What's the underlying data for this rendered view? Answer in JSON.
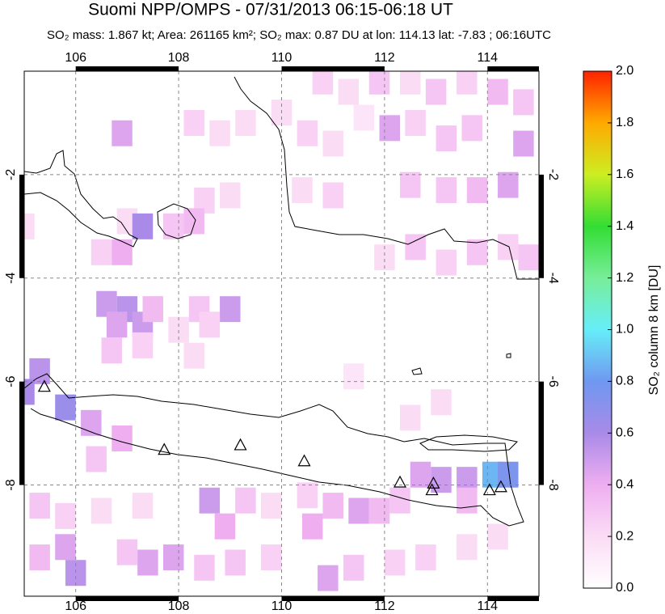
{
  "title": "Suomi NPP/OMPS - 07/31/2013 06:15-06:18 UT",
  "subtitle": "SO₂ mass: 1.867 kt; Area: 261165 km²; SO₂ max: 0.87 DU at lon: 114.13 lat: -7.83 ; 06:16UTC",
  "map": {
    "lonlim": [
      105,
      115
    ],
    "latlim": [
      -10.15,
      0
    ],
    "lonticks": [
      106,
      108,
      110,
      112,
      114
    ],
    "latticks": [
      -2,
      -4,
      -6,
      -8
    ],
    "grid": true,
    "cells": [
      [
        106.9,
        -1.2,
        0.45
      ],
      [
        108.3,
        -1.0,
        0.25
      ],
      [
        108.8,
        -1.2,
        0.2
      ],
      [
        109.3,
        -1.0,
        0.2
      ],
      [
        110.8,
        -0.2,
        0.25
      ],
      [
        111.3,
        -0.4,
        0.2
      ],
      [
        111.9,
        -0.2,
        0.3
      ],
      [
        112.5,
        -0.2,
        0.2
      ],
      [
        113.0,
        -0.4,
        0.3
      ],
      [
        113.6,
        -0.2,
        0.25
      ],
      [
        114.2,
        -0.4,
        0.35
      ],
      [
        114.7,
        -0.6,
        0.3
      ],
      [
        110.0,
        -0.8,
        0.2
      ],
      [
        110.5,
        -1.2,
        0.25
      ],
      [
        111.0,
        -1.4,
        0.2
      ],
      [
        111.6,
        -0.9,
        0.15
      ],
      [
        112.1,
        -1.1,
        0.45
      ],
      [
        112.6,
        -1.0,
        0.25
      ],
      [
        113.2,
        -1.3,
        0.3
      ],
      [
        113.7,
        -1.1,
        0.3
      ],
      [
        114.7,
        -1.4,
        0.45
      ],
      [
        110.4,
        -2.3,
        0.2
      ],
      [
        111.0,
        -2.4,
        0.25
      ],
      [
        112.5,
        -2.2,
        0.3
      ],
      [
        113.2,
        -2.3,
        0.3
      ],
      [
        113.8,
        -2.3,
        0.35
      ],
      [
        114.4,
        -2.2,
        0.45
      ],
      [
        108.5,
        -2.5,
        0.25
      ],
      [
        109.0,
        -2.4,
        0.2
      ],
      [
        107.0,
        -2.9,
        0.2
      ],
      [
        107.3,
        -3.0,
        0.6
      ],
      [
        107.9,
        -3.0,
        0.3
      ],
      [
        108.3,
        -2.9,
        0.35
      ],
      [
        112.0,
        -3.6,
        0.2
      ],
      [
        112.6,
        -3.4,
        0.3
      ],
      [
        113.2,
        -3.7,
        0.25
      ],
      [
        113.8,
        -3.5,
        0.3
      ],
      [
        114.4,
        -3.4,
        0.25
      ],
      [
        114.8,
        -3.6,
        0.3
      ],
      [
        106.5,
        -3.5,
        0.25
      ],
      [
        106.9,
        -3.5,
        0.4
      ],
      [
        105.0,
        -3.0,
        0.2
      ],
      [
        106.6,
        -4.5,
        0.5
      ],
      [
        107.0,
        -4.6,
        0.55
      ],
      [
        107.3,
        -4.9,
        0.5
      ],
      [
        106.8,
        -4.9,
        0.45
      ],
      [
        107.5,
        -4.6,
        0.35
      ],
      [
        108.4,
        -4.6,
        0.3
      ],
      [
        109.0,
        -4.6,
        0.5
      ],
      [
        108.6,
        -4.9,
        0.25
      ],
      [
        106.7,
        -5.4,
        0.3
      ],
      [
        107.3,
        -5.3,
        0.25
      ],
      [
        108.0,
        -5.0,
        0.2
      ],
      [
        108.3,
        -5.5,
        0.2
      ],
      [
        105.3,
        -5.8,
        0.55
      ],
      [
        105.0,
        -6.2,
        0.6
      ],
      [
        105.8,
        -6.5,
        0.65
      ],
      [
        106.3,
        -6.8,
        0.45
      ],
      [
        106.9,
        -7.1,
        0.4
      ],
      [
        106.4,
        -7.5,
        0.3
      ],
      [
        111.4,
        -5.9,
        0.15
      ],
      [
        112.5,
        -6.7,
        0.2
      ],
      [
        113.1,
        -6.4,
        0.2
      ],
      [
        112.7,
        -7.8,
        0.45
      ],
      [
        113.1,
        -7.9,
        0.5
      ],
      [
        113.6,
        -7.9,
        0.5
      ],
      [
        114.1,
        -7.8,
        0.87
      ],
      [
        114.4,
        -7.8,
        0.75
      ],
      [
        113.6,
        -8.3,
        0.35
      ],
      [
        112.3,
        -8.3,
        0.3
      ],
      [
        110.5,
        -8.2,
        0.25
      ],
      [
        111.0,
        -8.4,
        0.35
      ],
      [
        111.5,
        -8.5,
        0.45
      ],
      [
        111.9,
        -8.5,
        0.35
      ],
      [
        110.6,
        -8.8,
        0.4
      ],
      [
        109.3,
        -8.3,
        0.3
      ],
      [
        108.6,
        -8.3,
        0.5
      ],
      [
        108.9,
        -8.8,
        0.4
      ],
      [
        109.8,
        -8.4,
        0.2
      ],
      [
        105.3,
        -8.4,
        0.3
      ],
      [
        105.8,
        -8.6,
        0.25
      ],
      [
        106.5,
        -8.5,
        0.2
      ],
      [
        107.3,
        -8.4,
        0.2
      ],
      [
        105.3,
        -9.4,
        0.35
      ],
      [
        105.8,
        -9.2,
        0.45
      ],
      [
        106.0,
        -9.7,
        0.55
      ],
      [
        107.0,
        -9.3,
        0.3
      ],
      [
        107.4,
        -9.5,
        0.45
      ],
      [
        107.9,
        -9.4,
        0.45
      ],
      [
        108.5,
        -9.6,
        0.3
      ],
      [
        109.1,
        -9.5,
        0.3
      ],
      [
        109.8,
        -9.4,
        0.25
      ],
      [
        110.9,
        -9.8,
        0.45
      ],
      [
        111.4,
        -9.6,
        0.3
      ],
      [
        112.2,
        -9.5,
        0.25
      ],
      [
        112.8,
        -9.4,
        0.25
      ],
      [
        113.6,
        -9.2,
        0.2
      ],
      [
        114.2,
        -9.0,
        0.2
      ]
    ],
    "volcanoes": [
      [
        105.39,
        -6.11
      ],
      [
        107.72,
        -7.33
      ],
      [
        109.2,
        -7.24
      ],
      [
        110.44,
        -7.55
      ],
      [
        112.3,
        -7.96
      ],
      [
        112.95,
        -7.98
      ],
      [
        112.92,
        -8.11
      ],
      [
        114.04,
        -8.11
      ],
      [
        114.26,
        -8.05
      ]
    ]
  },
  "colorbar": {
    "label": "SO₂ column 8 km [DU]",
    "lim": [
      0,
      2
    ],
    "ticks": [
      {
        "value": 0,
        "label": "0.0"
      },
      {
        "value": 0.2,
        "label": "0.2"
      },
      {
        "value": 0.4,
        "label": "0.4"
      },
      {
        "value": 0.6,
        "label": "0.6"
      },
      {
        "value": 0.8,
        "label": "0.8"
      },
      {
        "value": 1,
        "label": "1.0"
      },
      {
        "value": 1.2,
        "label": "1.2"
      },
      {
        "value": 1.4,
        "label": "1.4"
      },
      {
        "value": 1.6,
        "label": "1.6"
      },
      {
        "value": 1.8,
        "label": "1.8"
      },
      {
        "value": 2,
        "label": "2.0"
      }
    ]
  }
}
